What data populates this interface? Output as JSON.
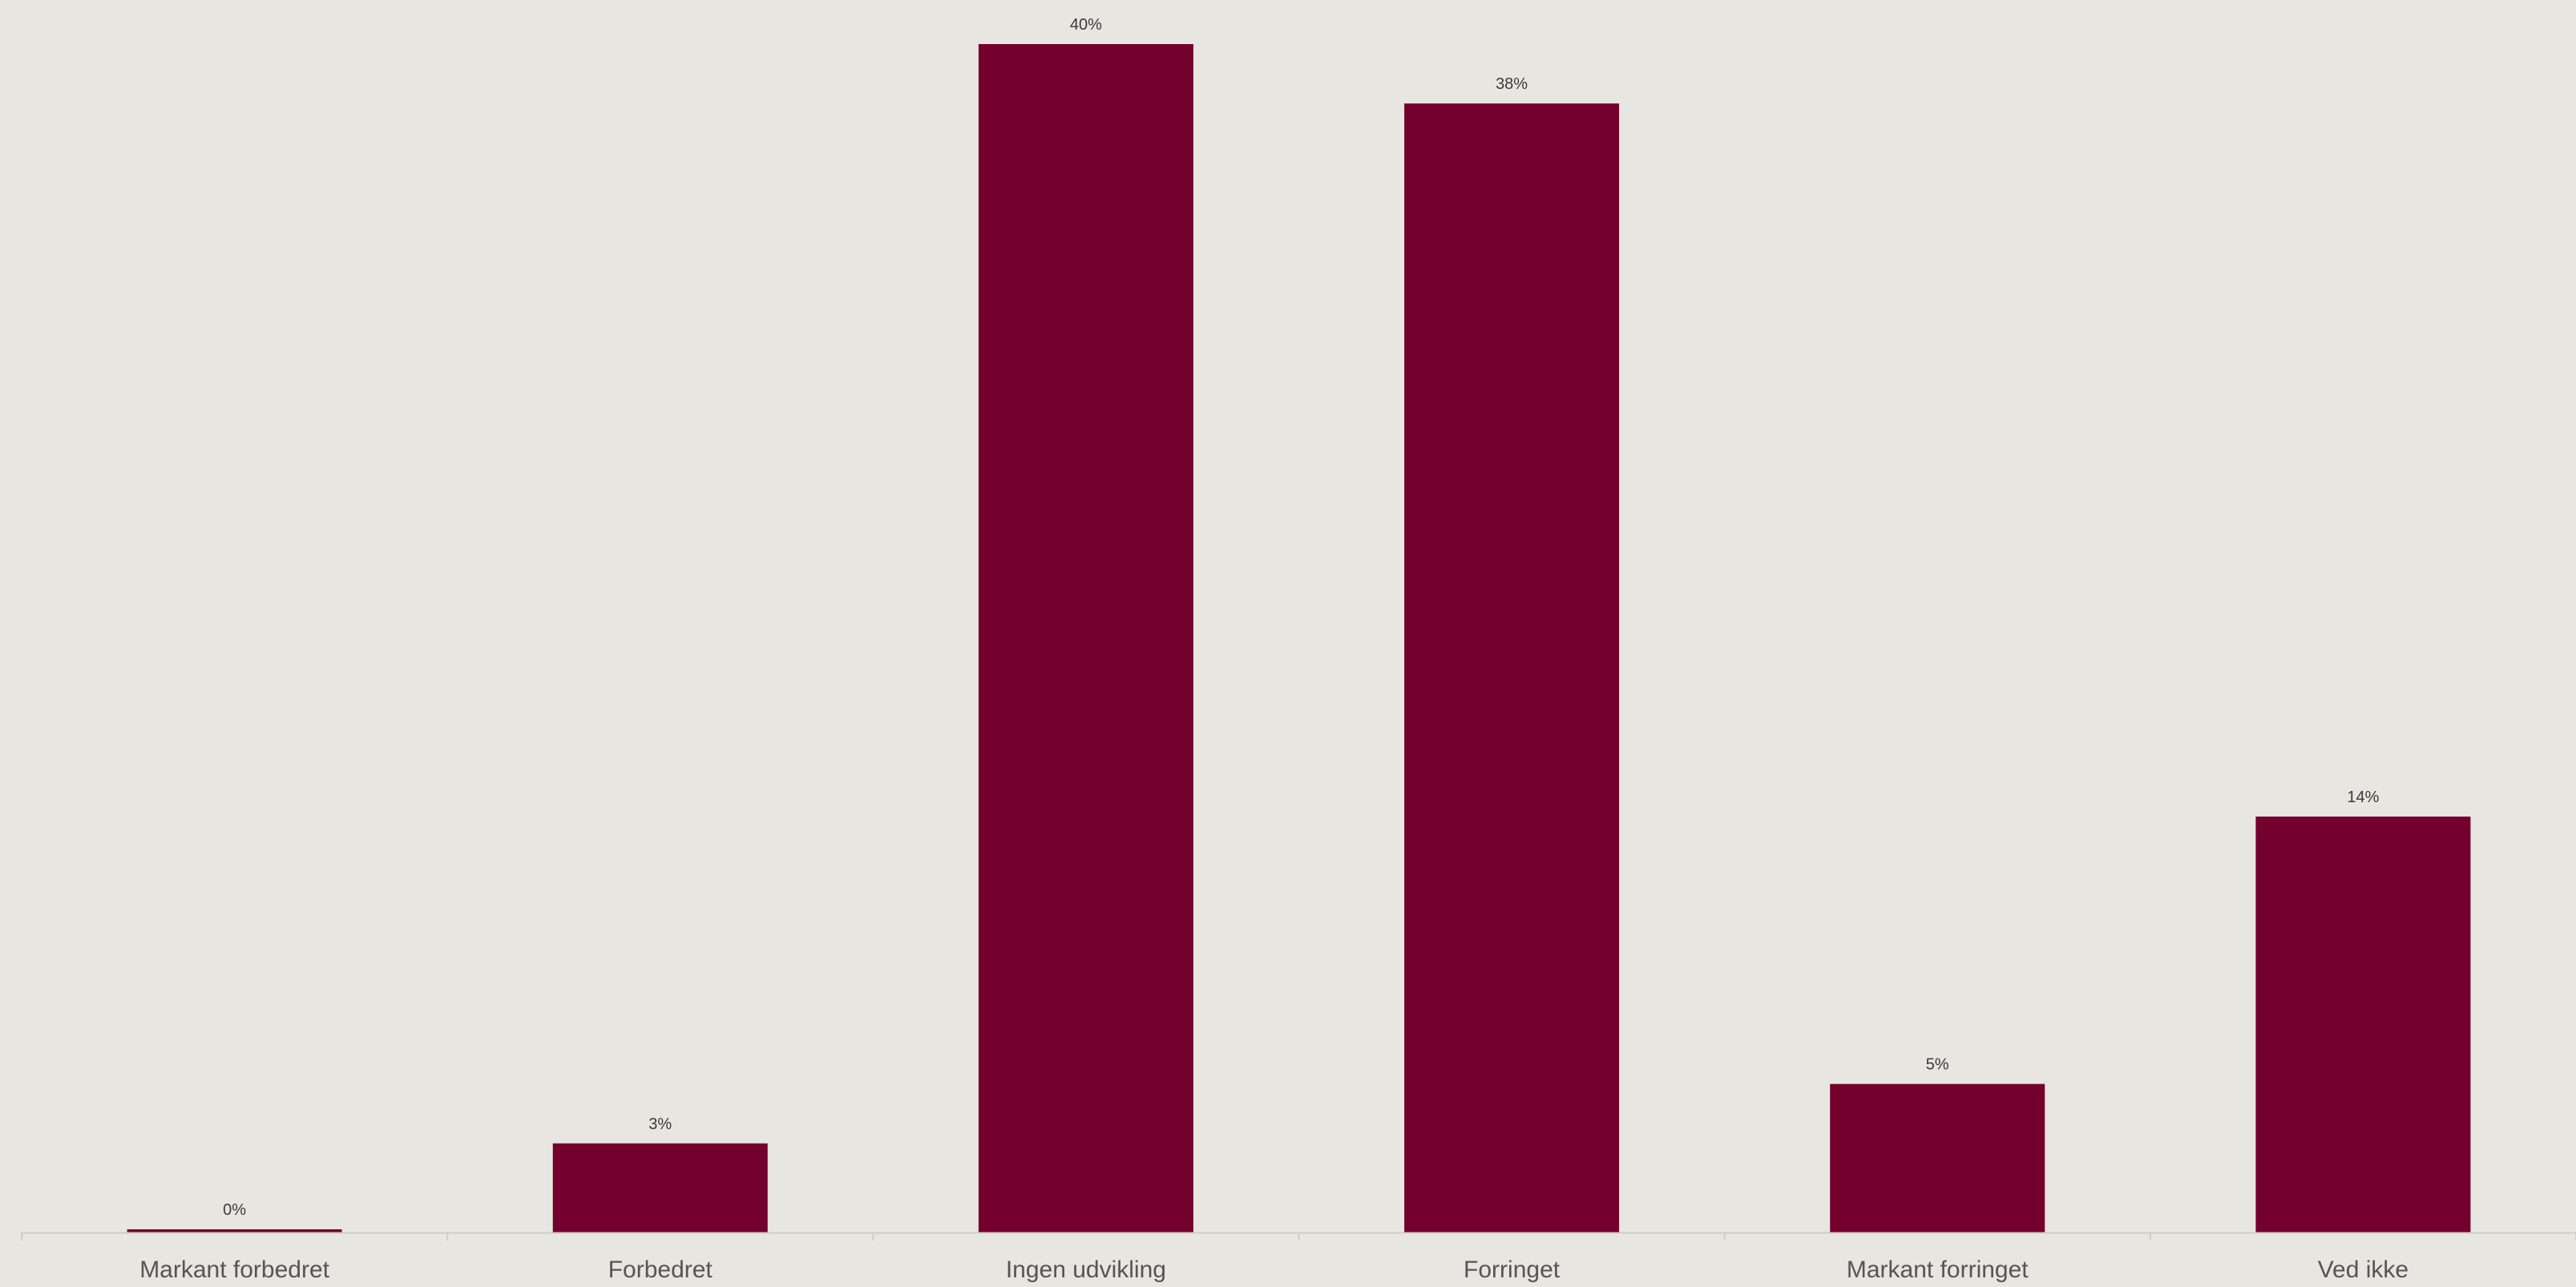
{
  "colors": {
    "background": "#e8e6e1",
    "bar": "#73002d",
    "axis": "#cfcdc8",
    "text": "#3a3a3a",
    "category_text": "#555555"
  },
  "chart_data": {
    "type": "bar",
    "title": "",
    "xlabel": "",
    "ylabel": "",
    "categories": [
      "Markant forbedret",
      "Forbedret",
      "Ingen udvikling",
      "Forringet",
      "Markant forringet",
      "Ved ikke"
    ],
    "values": [
      0,
      3,
      40,
      38,
      5,
      14
    ],
    "value_labels": [
      "0%",
      "3%",
      "40%",
      "38%",
      "5%",
      "14%"
    ],
    "unit": "%",
    "ylim": [
      0,
      40
    ],
    "grid": false,
    "legend": "none"
  }
}
